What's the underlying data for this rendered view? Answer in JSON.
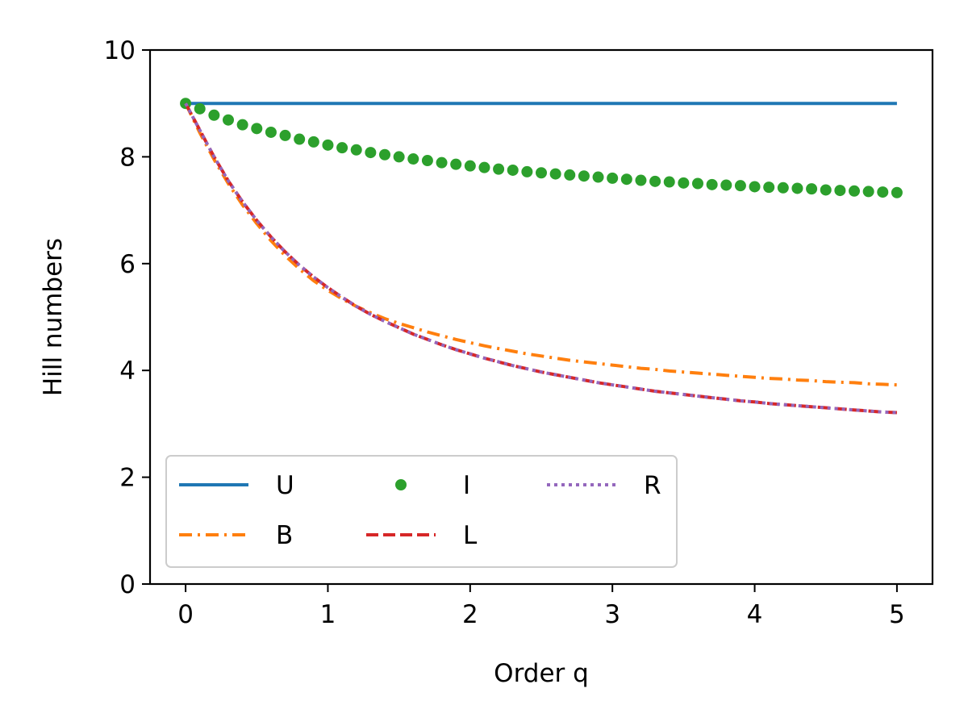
{
  "chart_data": {
    "type": "line",
    "title": "",
    "xlabel": "Order q",
    "ylabel": "Hill numbers",
    "xlim": [
      -0.25,
      5.25
    ],
    "ylim": [
      0,
      10
    ],
    "xticks": [
      "0",
      "1",
      "2",
      "3",
      "4",
      "5"
    ],
    "yticks": [
      "0",
      "2",
      "4",
      "6",
      "8",
      "10"
    ],
    "grid": false,
    "legend": {
      "placement": "lower-left",
      "columns": 3
    },
    "x": [
      0,
      0.1,
      0.2,
      0.3,
      0.4,
      0.5,
      0.6,
      0.7,
      0.8,
      0.9,
      1.0,
      1.1,
      1.2,
      1.3,
      1.4,
      1.5,
      1.6,
      1.7,
      1.8,
      1.9,
      2.0,
      2.1,
      2.2,
      2.3,
      2.4,
      2.5,
      2.6,
      2.7,
      2.8,
      2.9,
      3.0,
      3.1,
      3.2,
      3.3,
      3.4,
      3.5,
      3.6,
      3.7,
      3.8,
      3.9,
      4.0,
      4.1,
      4.2,
      4.3,
      4.4,
      4.5,
      4.6,
      4.7,
      4.8,
      4.9,
      5.0
    ],
    "series": [
      {
        "name": "U",
        "style": "solid",
        "color": "#1f77b4",
        "values": [
          9,
          9,
          9,
          9,
          9,
          9,
          9,
          9,
          9,
          9,
          9,
          9,
          9,
          9,
          9,
          9,
          9,
          9,
          9,
          9,
          9,
          9,
          9,
          9,
          9,
          9,
          9,
          9,
          9,
          9,
          9,
          9,
          9,
          9,
          9,
          9,
          9,
          9,
          9,
          9,
          9,
          9,
          9,
          9,
          9,
          9,
          9,
          9,
          9,
          9,
          9
        ]
      },
      {
        "name": "B",
        "style": "dashdot",
        "color": "#ff7f0e",
        "values": [
          9.0,
          8.45,
          7.95,
          7.5,
          7.1,
          6.75,
          6.43,
          6.15,
          5.9,
          5.68,
          5.5,
          5.34,
          5.2,
          5.08,
          4.97,
          4.88,
          4.8,
          4.72,
          4.65,
          4.58,
          4.52,
          4.46,
          4.41,
          4.36,
          4.31,
          4.27,
          4.23,
          4.19,
          4.16,
          4.13,
          4.1,
          4.07,
          4.04,
          4.02,
          3.99,
          3.97,
          3.95,
          3.93,
          3.91,
          3.89,
          3.87,
          3.85,
          3.84,
          3.82,
          3.81,
          3.79,
          3.78,
          3.77,
          3.75,
          3.74,
          3.73
        ]
      },
      {
        "name": "I",
        "style": "dots",
        "color": "#2ca02c",
        "values": [
          9.0,
          8.9,
          8.78,
          8.69,
          8.6,
          8.53,
          8.46,
          8.4,
          8.33,
          8.28,
          8.22,
          8.17,
          8.13,
          8.08,
          8.04,
          8.0,
          7.96,
          7.93,
          7.89,
          7.86,
          7.83,
          7.8,
          7.77,
          7.75,
          7.72,
          7.7,
          7.68,
          7.66,
          7.64,
          7.62,
          7.6,
          7.58,
          7.56,
          7.54,
          7.53,
          7.51,
          7.5,
          7.48,
          7.47,
          7.46,
          7.44,
          7.43,
          7.42,
          7.41,
          7.4,
          7.38,
          7.37,
          7.36,
          7.35,
          7.34,
          7.33
        ]
      },
      {
        "name": "L",
        "style": "dashed",
        "color": "#d62728",
        "values": [
          9.0,
          8.5,
          8.0,
          7.55,
          7.16,
          6.81,
          6.5,
          6.22,
          5.97,
          5.75,
          5.55,
          5.37,
          5.2,
          5.05,
          4.92,
          4.8,
          4.68,
          4.58,
          4.48,
          4.39,
          4.31,
          4.23,
          4.16,
          4.09,
          4.03,
          3.97,
          3.92,
          3.87,
          3.82,
          3.77,
          3.73,
          3.69,
          3.65,
          3.61,
          3.58,
          3.55,
          3.52,
          3.49,
          3.46,
          3.43,
          3.41,
          3.38,
          3.36,
          3.34,
          3.32,
          3.3,
          3.28,
          3.26,
          3.24,
          3.22,
          3.21
        ]
      },
      {
        "name": "R",
        "style": "dotted",
        "color": "#9467bd",
        "values": [
          9.0,
          8.5,
          8.0,
          7.55,
          7.16,
          6.81,
          6.5,
          6.22,
          5.97,
          5.75,
          5.55,
          5.37,
          5.2,
          5.05,
          4.92,
          4.8,
          4.68,
          4.58,
          4.48,
          4.39,
          4.31,
          4.23,
          4.16,
          4.09,
          4.03,
          3.97,
          3.92,
          3.87,
          3.82,
          3.77,
          3.73,
          3.69,
          3.65,
          3.61,
          3.58,
          3.55,
          3.52,
          3.49,
          3.46,
          3.43,
          3.41,
          3.38,
          3.36,
          3.34,
          3.32,
          3.3,
          3.28,
          3.26,
          3.24,
          3.22,
          3.21
        ]
      }
    ]
  }
}
